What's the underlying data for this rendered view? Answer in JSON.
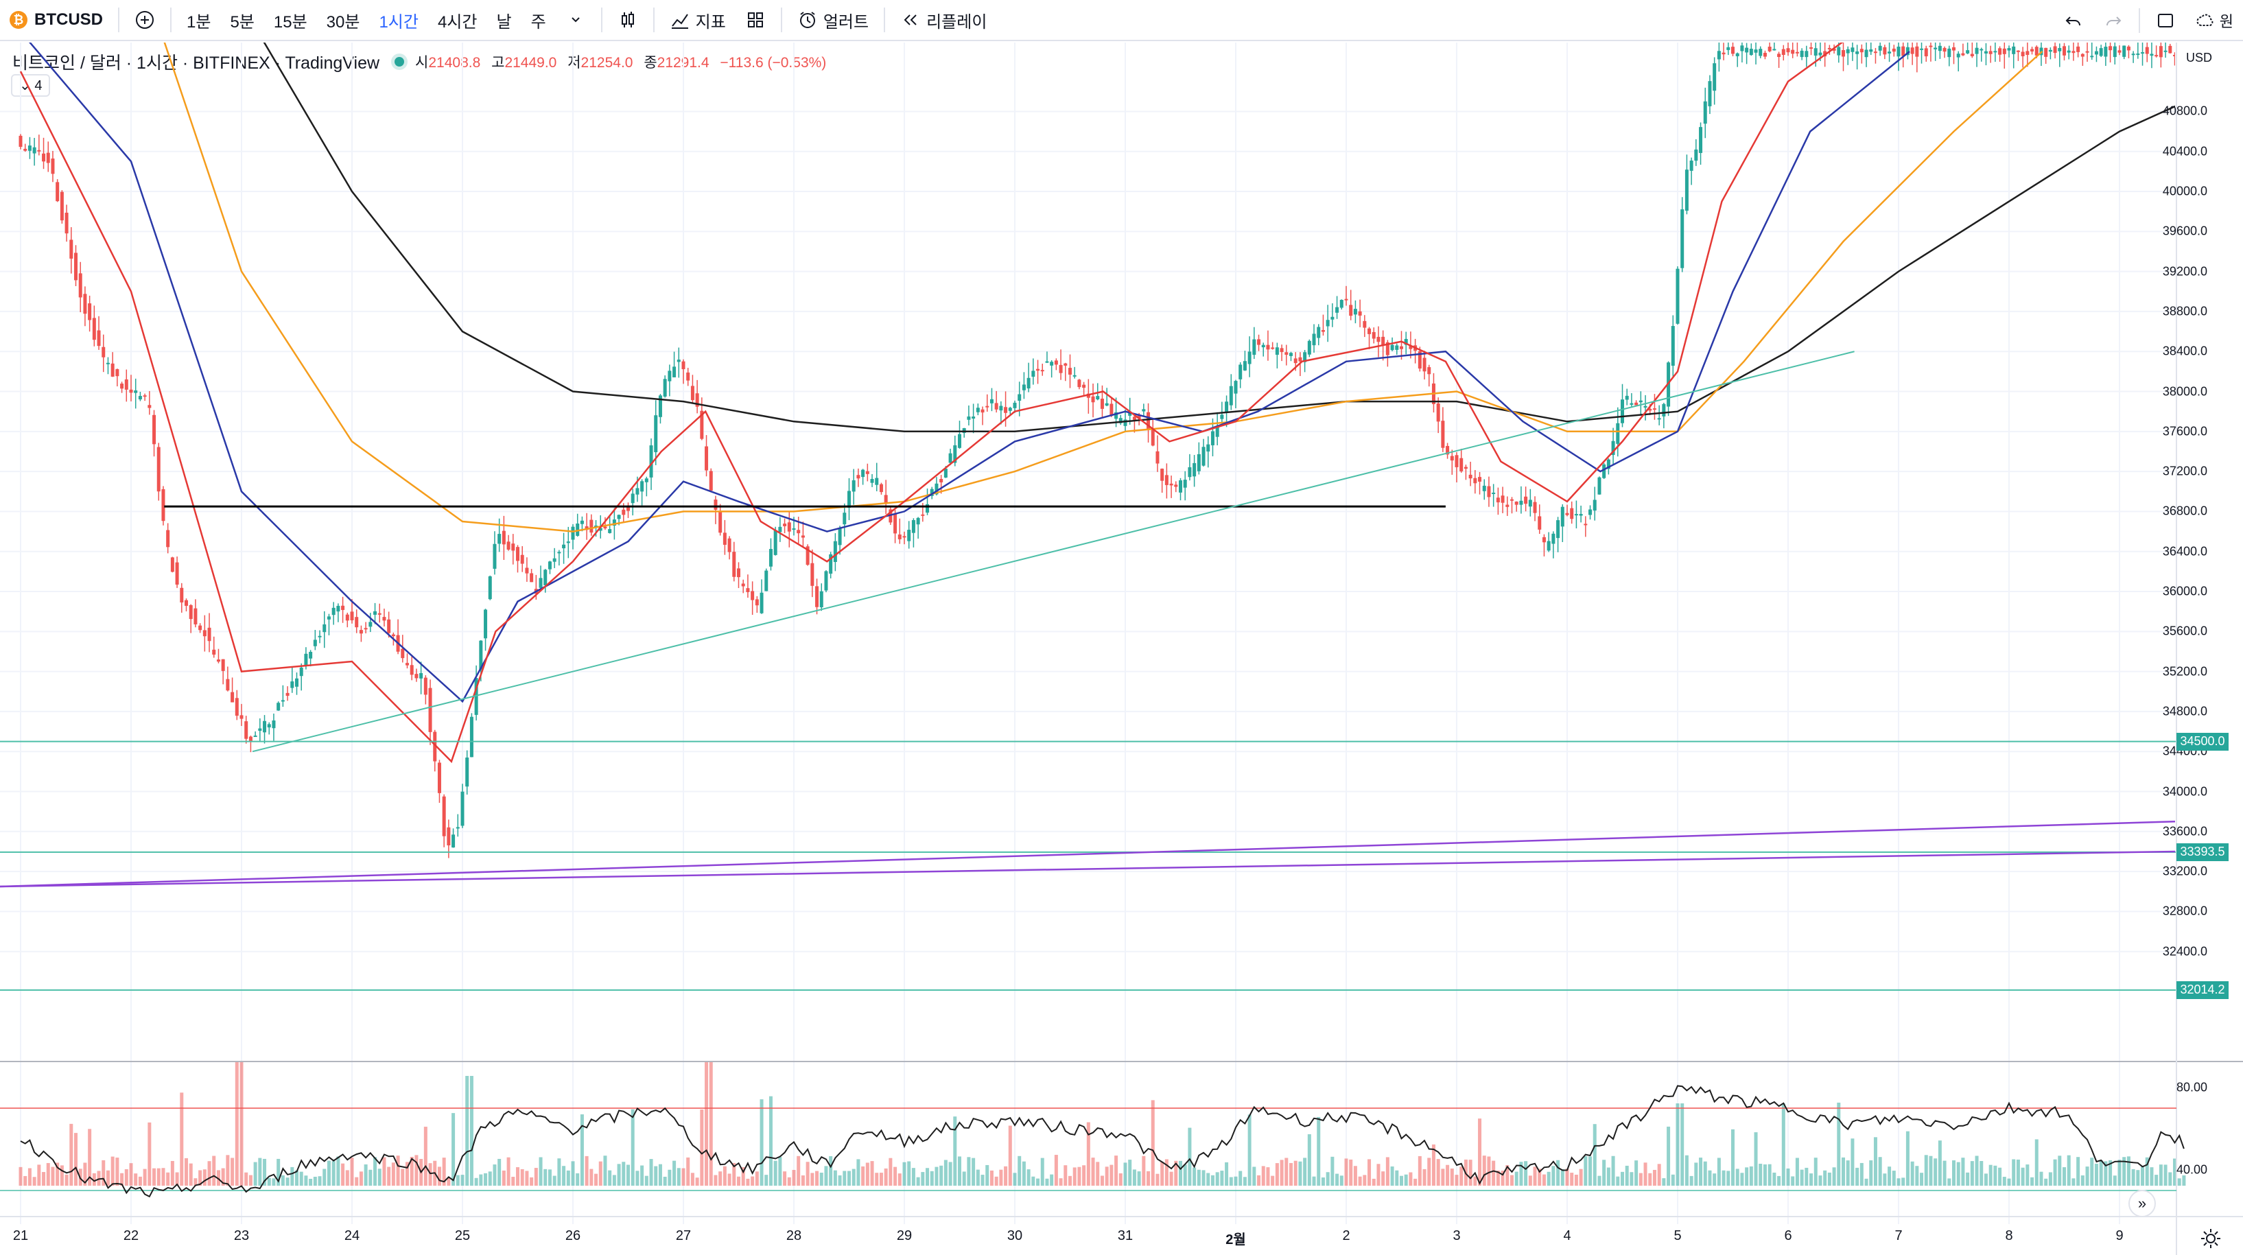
{
  "toolbar": {
    "symbol": "BTCUSD",
    "intervals": [
      "1분",
      "5분",
      "15분",
      "30분",
      "1시간",
      "4시간",
      "날",
      "주"
    ],
    "active_interval": "1시간",
    "indicators": "지표",
    "alert": "얼러트",
    "replay": "리플레이"
  },
  "legend": {
    "title": "비트코인 / 달러 · 1시간 · BITFINEX · TradingView",
    "open_label": "시",
    "open": "21408.8",
    "high_label": "고",
    "high": "21449.0",
    "low_label": "저",
    "low": "21254.0",
    "close_label": "종",
    "close": "21291.4",
    "change": "−113.6 (−0.53%)",
    "indicator_count": "4"
  },
  "axis": {
    "currency": "USD",
    "price_ticks": [
      "40800.0",
      "40400.0",
      "40000.0",
      "39600.0",
      "39200.0",
      "38800.0",
      "38400.0",
      "38000.0",
      "37600.0",
      "37200.0",
      "36800.0",
      "36400.0",
      "36000.0",
      "35600.0",
      "35200.0",
      "34800.0",
      "34400.0",
      "34000.0",
      "33600.0",
      "33200.0",
      "32800.0",
      "32400.0"
    ],
    "price_tags": [
      "34500.0",
      "33393.5",
      "32014.2"
    ],
    "rsi_ticks": [
      "80.00",
      "40.00"
    ],
    "time_ticks": [
      "21",
      "22",
      "23",
      "24",
      "25",
      "26",
      "27",
      "28",
      "29",
      "30",
      "31",
      "2월",
      "2",
      "3",
      "4",
      "5",
      "6",
      "7",
      "8",
      "9"
    ]
  },
  "colors": {
    "up": "#26a69a",
    "down": "#ef5350",
    "ema_fast": "#e53935",
    "ema_mid": "#2a39a8",
    "ema_slow": "#f59d1c",
    "ema_long": "#1e1e1e",
    "trend": "#4dbfa8",
    "channel": "#8e44d6"
  },
  "chart_data": {
    "type": "candlestick",
    "title": "비트코인 / 달러 · 1시간 · BITFINEX",
    "ylim": [
      32000,
      41400
    ],
    "x_days": [
      "21",
      "22",
      "23",
      "24",
      "25",
      "26",
      "27",
      "28",
      "29",
      "30",
      "31",
      "2월",
      "2",
      "3",
      "4",
      "5",
      "6",
      "7",
      "8",
      "9"
    ],
    "price_path": [
      [
        0.0,
        40500
      ],
      [
        0.3,
        40300
      ],
      [
        0.6,
        38900
      ],
      [
        0.8,
        38300
      ],
      [
        1.0,
        38000
      ],
      [
        1.2,
        37900
      ],
      [
        1.35,
        36500
      ],
      [
        1.5,
        35900
      ],
      [
        1.7,
        35600
      ],
      [
        1.9,
        35100
      ],
      [
        2.1,
        34500
      ],
      [
        2.3,
        34700
      ],
      [
        2.5,
        35100
      ],
      [
        2.7,
        35500
      ],
      [
        2.9,
        35900
      ],
      [
        3.1,
        35600
      ],
      [
        3.3,
        35800
      ],
      [
        3.5,
        35300
      ],
      [
        3.7,
        35100
      ],
      [
        3.8,
        34200
      ],
      [
        3.9,
        33400
      ],
      [
        4.0,
        33700
      ],
      [
        4.1,
        34500
      ],
      [
        4.2,
        35500
      ],
      [
        4.35,
        36600
      ],
      [
        4.5,
        36400
      ],
      [
        4.7,
        36000
      ],
      [
        4.9,
        36400
      ],
      [
        5.1,
        36700
      ],
      [
        5.3,
        36600
      ],
      [
        5.5,
        36800
      ],
      [
        5.7,
        37100
      ],
      [
        5.85,
        38100
      ],
      [
        6.0,
        38300
      ],
      [
        6.15,
        37900
      ],
      [
        6.3,
        36900
      ],
      [
        6.5,
        36200
      ],
      [
        6.7,
        35800
      ],
      [
        6.9,
        36700
      ],
      [
        7.1,
        36600
      ],
      [
        7.25,
        35900
      ],
      [
        7.4,
        36400
      ],
      [
        7.6,
        37200
      ],
      [
        7.8,
        37100
      ],
      [
        8.0,
        36500
      ],
      [
        8.2,
        36800
      ],
      [
        8.4,
        37200
      ],
      [
        8.6,
        37700
      ],
      [
        8.8,
        37900
      ],
      [
        9.0,
        37800
      ],
      [
        9.2,
        38200
      ],
      [
        9.4,
        38300
      ],
      [
        9.6,
        38100
      ],
      [
        9.8,
        37900
      ],
      [
        10.0,
        37700
      ],
      [
        10.2,
        37800
      ],
      [
        10.35,
        37200
      ],
      [
        10.5,
        37000
      ],
      [
        10.7,
        37300
      ],
      [
        10.85,
        37600
      ],
      [
        11.0,
        38000
      ],
      [
        11.2,
        38500
      ],
      [
        11.4,
        38400
      ],
      [
        11.6,
        38300
      ],
      [
        11.8,
        38600
      ],
      [
        12.0,
        38900
      ],
      [
        12.2,
        38700
      ],
      [
        12.4,
        38400
      ],
      [
        12.6,
        38500
      ],
      [
        12.8,
        38100
      ],
      [
        12.9,
        37500
      ],
      [
        13.1,
        37200
      ],
      [
        13.3,
        37000
      ],
      [
        13.5,
        36900
      ],
      [
        13.7,
        36900
      ],
      [
        13.85,
        36400
      ],
      [
        14.0,
        36800
      ],
      [
        14.2,
        36700
      ],
      [
        14.4,
        37300
      ],
      [
        14.55,
        37900
      ],
      [
        14.7,
        37900
      ],
      [
        14.9,
        37700
      ],
      [
        15.0,
        38700
      ],
      [
        15.1,
        40100
      ],
      [
        15.2,
        40400
      ],
      [
        15.3,
        40900
      ],
      [
        15.4,
        41400
      ]
    ],
    "ema_fast": [
      [
        0.0,
        41200
      ],
      [
        1.0,
        39000
      ],
      [
        2.0,
        35200
      ],
      [
        3.0,
        35300
      ],
      [
        3.9,
        34300
      ],
      [
        4.3,
        35600
      ],
      [
        5.0,
        36300
      ],
      [
        5.8,
        37400
      ],
      [
        6.2,
        37800
      ],
      [
        6.7,
        36700
      ],
      [
        7.3,
        36300
      ],
      [
        8.0,
        36900
      ],
      [
        9.0,
        37800
      ],
      [
        9.8,
        38000
      ],
      [
        10.4,
        37500
      ],
      [
        11.0,
        37700
      ],
      [
        11.6,
        38300
      ],
      [
        12.5,
        38500
      ],
      [
        12.9,
        38300
      ],
      [
        13.4,
        37300
      ],
      [
        14.0,
        36900
      ],
      [
        14.5,
        37500
      ],
      [
        15.0,
        38200
      ],
      [
        15.4,
        39900
      ],
      [
        16.0,
        41100
      ],
      [
        16.5,
        41500
      ]
    ],
    "ema_mid": [
      [
        0.0,
        41600
      ],
      [
        1.0,
        40300
      ],
      [
        2.0,
        37000
      ],
      [
        3.0,
        35900
      ],
      [
        4.0,
        34900
      ],
      [
        4.5,
        35900
      ],
      [
        5.5,
        36500
      ],
      [
        6.0,
        37100
      ],
      [
        6.5,
        36900
      ],
      [
        7.3,
        36600
      ],
      [
        8.0,
        36800
      ],
      [
        9.0,
        37500
      ],
      [
        10.0,
        37800
      ],
      [
        10.7,
        37600
      ],
      [
        11.2,
        37800
      ],
      [
        12.0,
        38300
      ],
      [
        12.9,
        38400
      ],
      [
        13.6,
        37700
      ],
      [
        14.3,
        37200
      ],
      [
        15.0,
        37600
      ],
      [
        15.5,
        39000
      ],
      [
        16.2,
        40600
      ],
      [
        17.1,
        41400
      ]
    ],
    "ema_slow": [
      [
        1.3,
        41500
      ],
      [
        2.0,
        39200
      ],
      [
        3.0,
        37500
      ],
      [
        4.0,
        36700
      ],
      [
        5.0,
        36600
      ],
      [
        6.0,
        36800
      ],
      [
        7.0,
        36800
      ],
      [
        8.0,
        36900
      ],
      [
        9.0,
        37200
      ],
      [
        10.0,
        37600
      ],
      [
        11.0,
        37700
      ],
      [
        12.0,
        37900
      ],
      [
        13.0,
        38000
      ],
      [
        14.0,
        37600
      ],
      [
        15.0,
        37600
      ],
      [
        15.6,
        38300
      ],
      [
        16.5,
        39500
      ],
      [
        17.5,
        40600
      ],
      [
        18.3,
        41400
      ]
    ],
    "ema_long": [
      [
        2.2,
        41500
      ],
      [
        3.0,
        40000
      ],
      [
        4.0,
        38600
      ],
      [
        5.0,
        38000
      ],
      [
        6.0,
        37900
      ],
      [
        7.0,
        37700
      ],
      [
        8.0,
        37600
      ],
      [
        9.0,
        37600
      ],
      [
        10.0,
        37700
      ],
      [
        11.0,
        37800
      ],
      [
        12.0,
        37900
      ],
      [
        13.0,
        37900
      ],
      [
        14.0,
        37700
      ],
      [
        15.0,
        37800
      ],
      [
        16.0,
        38400
      ],
      [
        17.0,
        39200
      ],
      [
        18.0,
        39900
      ],
      [
        19.0,
        40600
      ],
      [
        19.6,
        40900
      ]
    ],
    "horizontal_line": {
      "y": 36850,
      "x0": 1.3,
      "x1": 12.9
    },
    "trendline": {
      "x0": 2.1,
      "y0": 34400,
      "x1": 16.6,
      "y1": 38400
    },
    "hlines": [
      34500,
      33393.5,
      32014.2
    ],
    "channel_lines": [
      {
        "x0": 0.0,
        "y0": 33050,
        "x1": 19.6,
        "y1": 33700
      },
      {
        "x0": 0.0,
        "y0": 33050,
        "x1": 19.6,
        "y1": 33400
      }
    ],
    "rsi": {
      "levels": [
        70,
        30
      ],
      "ylim": [
        20,
        90
      ],
      "path": [
        [
          0.0,
          55
        ],
        [
          0.3,
          45
        ],
        [
          0.6,
          35
        ],
        [
          1.0,
          30
        ],
        [
          1.3,
          28
        ],
        [
          1.7,
          35
        ],
        [
          2.1,
          30
        ],
        [
          2.5,
          42
        ],
        [
          3.0,
          48
        ],
        [
          3.5,
          44
        ],
        [
          3.9,
          35
        ],
        [
          4.2,
          62
        ],
        [
          4.5,
          68
        ],
        [
          5.0,
          60
        ],
        [
          5.4,
          66
        ],
        [
          5.8,
          70
        ],
        [
          6.2,
          48
        ],
        [
          6.6,
          40
        ],
        [
          7.0,
          52
        ],
        [
          7.3,
          42
        ],
        [
          7.6,
          60
        ],
        [
          8.0,
          54
        ],
        [
          8.5,
          62
        ],
        [
          9.0,
          64
        ],
        [
          9.5,
          60
        ],
        [
          10.0,
          58
        ],
        [
          10.4,
          40
        ],
        [
          10.8,
          48
        ],
        [
          11.2,
          70
        ],
        [
          11.6,
          64
        ],
        [
          12.0,
          66
        ],
        [
          12.4,
          60
        ],
        [
          12.8,
          50
        ],
        [
          13.2,
          36
        ],
        [
          13.6,
          40
        ],
        [
          14.0,
          42
        ],
        [
          14.5,
          60
        ],
        [
          15.0,
          80
        ],
        [
          15.4,
          75
        ],
        [
          16.0,
          70
        ],
        [
          16.5,
          62
        ],
        [
          17.0,
          65
        ],
        [
          17.5,
          62
        ],
        [
          18.0,
          70
        ],
        [
          18.5,
          68
        ],
        [
          18.8,
          46
        ],
        [
          19.2,
          40
        ],
        [
          19.4,
          60
        ],
        [
          19.6,
          52
        ]
      ]
    },
    "volume_baseline": 1728
  }
}
